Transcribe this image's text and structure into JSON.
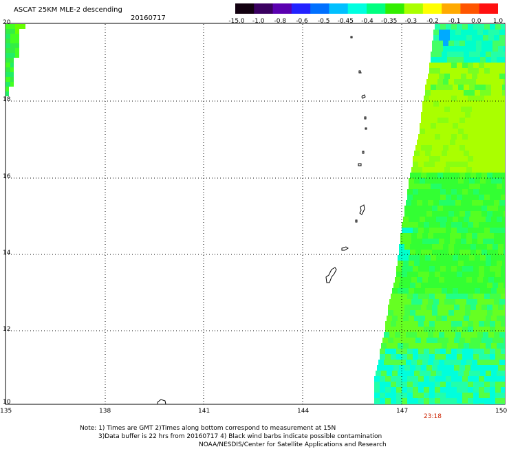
{
  "header": {
    "title": "ASCAT 25KM MLE-2 descending",
    "date": "20160717"
  },
  "colorbar": {
    "labels": [
      "-15.0",
      "-1.0",
      "-0.8",
      "-0.6",
      "-0.5",
      "-0.45",
      "-0.4",
      "-0.35",
      "-0.3",
      "-0.2",
      "-0.1",
      "0.0",
      "1.0"
    ],
    "colors": [
      "#120010",
      "#3a0060",
      "#5a00b0",
      "#2222ff",
      "#0070ff",
      "#00c0ff",
      "#00ffe0",
      "#00ff80",
      "#33ee00",
      "#aaff00",
      "#ffff00",
      "#ffaa00",
      "#ff5500",
      "#ff1010"
    ]
  },
  "map": {
    "lat_labels": [
      "20",
      "18",
      "16",
      "14",
      "12",
      "10"
    ],
    "lon_labels": [
      "135",
      "138",
      "141",
      "144",
      "147",
      "150"
    ],
    "pass_time": "23:18"
  },
  "footer": {
    "line1": "Note: 1) Times are GMT 2)Times along bottom correspond to measurement at 15N",
    "line2": "3)Data buffer is 22 hrs from 20160717 4) Black wind barbs indicate possible contamination",
    "line3": "NOAA/NESDIS/Center for Satellite Applications and Research"
  }
}
